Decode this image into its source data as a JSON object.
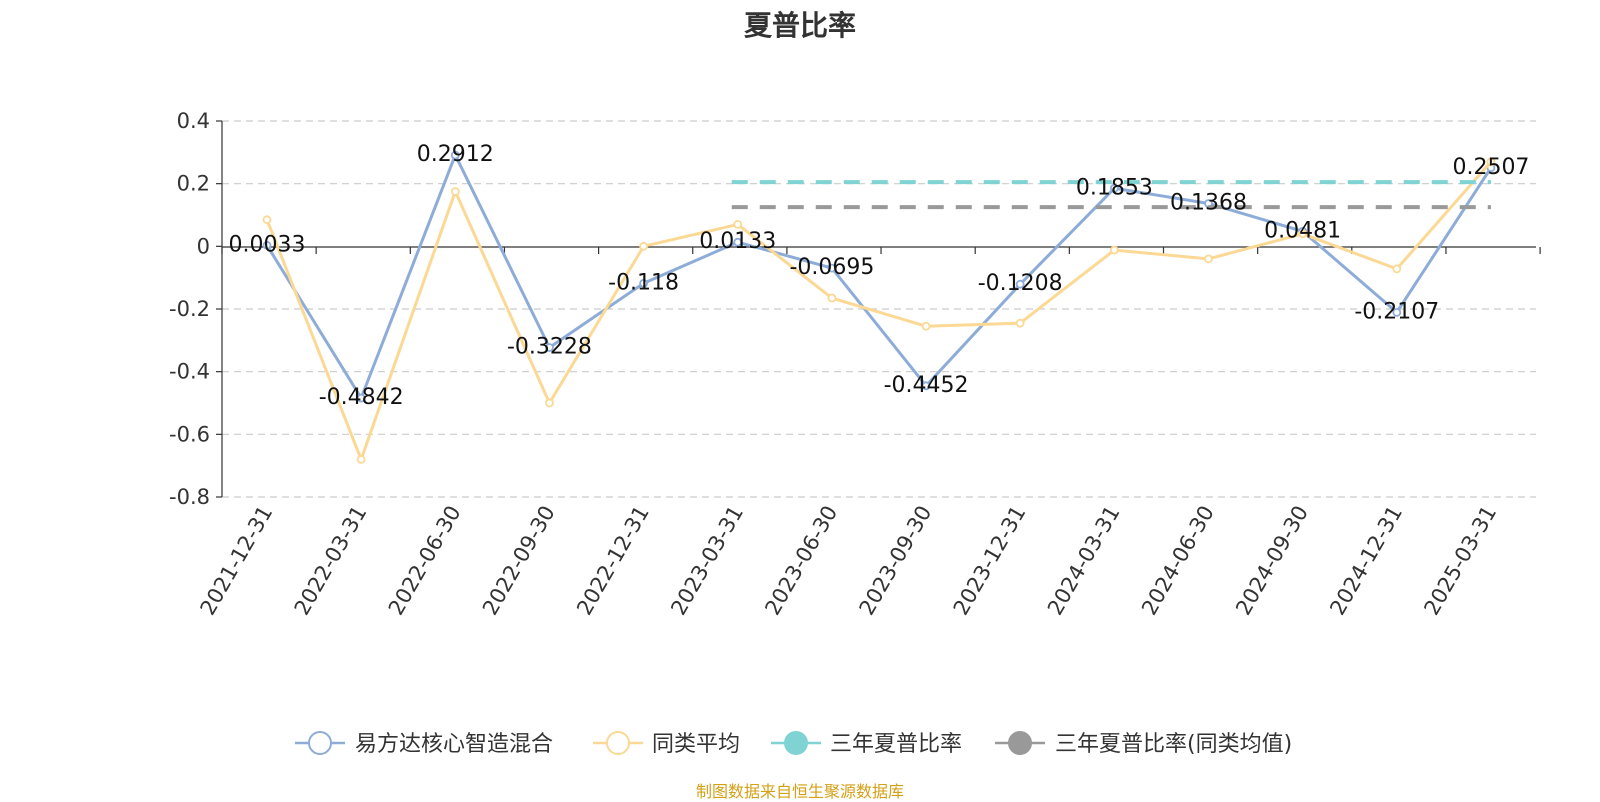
{
  "source_note": "制图数据来自恒生聚源数据库",
  "colors": {
    "fund": "#8eacd8",
    "peer_avg": "#fbd995",
    "three_year": "#7fd3d3",
    "three_year_peer": "#999999",
    "grid": "#cccccc",
    "axis": "#333333"
  },
  "chart_data": {
    "type": "line",
    "title": "夏普比率",
    "xlabel": "",
    "ylabel": "",
    "categories": [
      "2021-12-31",
      "2022-03-31",
      "2022-06-30",
      "2022-09-30",
      "2022-12-31",
      "2023-03-31",
      "2023-06-30",
      "2023-09-30",
      "2023-12-31",
      "2024-03-31",
      "2024-06-30",
      "2024-09-30",
      "2024-12-31",
      "2025-03-31"
    ],
    "ylim": [
      -0.8,
      0.4
    ],
    "yticks": [
      0.4,
      0.2,
      0,
      -0.2,
      -0.4,
      -0.6,
      -0.8
    ],
    "ytick_labels": [
      "0.4",
      "0.2",
      "0",
      "-0.2",
      "-0.4",
      "-0.6",
      "-0.8"
    ],
    "grid": true,
    "legend_position": "bottom",
    "series": [
      {
        "name": "易方达核心智造混合",
        "color_key": "fund",
        "values": [
          0.0033,
          -0.4842,
          0.2912,
          -0.3228,
          -0.118,
          0.0133,
          -0.0695,
          -0.4452,
          -0.1208,
          0.1853,
          0.1368,
          0.0481,
          -0.2107,
          0.2507
        ],
        "labels": [
          "0.0033",
          "-0.4842",
          "0.2912",
          "-0.3228",
          "-0.118",
          "0.0133",
          "-0.0695",
          "-0.4452",
          "-0.1208",
          "0.1853",
          "0.1368",
          "0.0481",
          "-0.2107",
          "0.2507"
        ]
      },
      {
        "name": "同类平均",
        "color_key": "peer_avg",
        "values": [
          0.085,
          -0.68,
          0.175,
          -0.5,
          0.0,
          0.07,
          -0.165,
          -0.255,
          -0.245,
          -0.012,
          -0.04,
          0.04,
          -0.072,
          0.27
        ]
      },
      {
        "name": "三年夏普比率",
        "color_key": "three_year",
        "style": "dashed",
        "start_index": 5,
        "end_index": 13,
        "value": 0.205
      },
      {
        "name": "三年夏普比率(同类均值)",
        "color_key": "three_year_peer",
        "style": "dashed",
        "start_index": 5,
        "end_index": 13,
        "value": 0.125
      }
    ]
  }
}
